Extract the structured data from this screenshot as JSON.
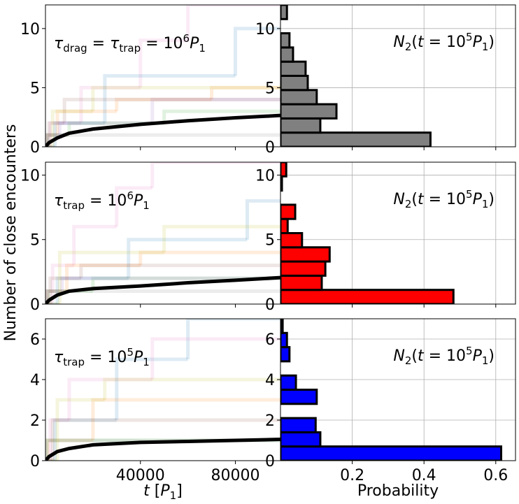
{
  "ylabel": "Number of close encounters",
  "chart_data": [
    {
      "type": "line",
      "xlim": [
        0,
        99000
      ],
      "ylim": [
        0,
        12
      ],
      "xticks": [
        40000,
        80000
      ],
      "yticks": [
        0,
        5,
        10
      ],
      "xticklabels": false,
      "grid": false,
      "alpha": 0.15,
      "annotation": [
        {
          "text": "τ",
          "style": "italic"
        },
        {
          "text": "drag",
          "style": "sub"
        },
        {
          "text": " = ",
          "style": "normal"
        },
        {
          "text": "τ",
          "style": "italic"
        },
        {
          "text": "trap",
          "style": "sub"
        },
        {
          "text": " = 10",
          "style": "normal"
        },
        {
          "text": "6",
          "style": "sup"
        },
        {
          "text": "P",
          "style": "italic"
        },
        {
          "text": "1",
          "style": "sub"
        }
      ],
      "series": [
        {
          "color": "#e377c2",
          "drawstyle": "steps",
          "width": 5,
          "x": [
            0,
            2000,
            15000,
            40000,
            60000
          ],
          "values": [
            0,
            2,
            5,
            9,
            12
          ]
        },
        {
          "color": "#ff7f0e",
          "drawstyle": "steps",
          "width": 5,
          "x": [
            0,
            500,
            5000,
            30000,
            70000
          ],
          "values": [
            0,
            1,
            3,
            4,
            5
          ]
        },
        {
          "color": "#1f77b4",
          "drawstyle": "steps",
          "width": 5,
          "x": [
            0,
            4000,
            25000,
            80000
          ],
          "values": [
            0,
            2,
            6,
            10
          ]
        },
        {
          "color": "#2ca02c",
          "drawstyle": "steps",
          "width": 5,
          "x": [
            0,
            1000,
            10000,
            50000
          ],
          "values": [
            0,
            1,
            2,
            3
          ]
        },
        {
          "color": "#7f7f7f",
          "drawstyle": "steps",
          "width": 5,
          "x": [
            0,
            300
          ],
          "values": [
            0,
            1
          ]
        },
        {
          "color": "#8c564b",
          "drawstyle": "steps",
          "width": 5,
          "x": [
            0,
            1500,
            8000
          ],
          "values": [
            0,
            2,
            4
          ]
        },
        {
          "color": "#bcbd22",
          "drawstyle": "steps",
          "width": 5,
          "x": [
            0,
            3000,
            20000
          ],
          "values": [
            0,
            3,
            5
          ]
        },
        {
          "color": "#9467bd",
          "drawstyle": "steps",
          "width": 5,
          "x": [
            0,
            700,
            6000,
            45000
          ],
          "values": [
            0,
            1,
            2,
            4
          ]
        },
        {
          "color": "#000000",
          "drawstyle": "default",
          "width": 5,
          "x": [
            0,
            1500,
            5000,
            10000,
            20000,
            40000,
            60000,
            80000,
            99000
          ],
          "values": [
            0,
            0.35,
            0.75,
            1.15,
            1.5,
            1.9,
            2.2,
            2.45,
            2.65
          ]
        }
      ]
    },
    {
      "type": "histogram",
      "xlim": [
        0,
        0.655
      ],
      "ylim": [
        0,
        12
      ],
      "xticks": [
        0.2,
        0.4,
        0.6
      ],
      "yticks": [
        0,
        5,
        10
      ],
      "xticklabels": false,
      "grid": true,
      "color": "#808080",
      "annotation": [
        {
          "text": "N",
          "style": "italic"
        },
        {
          "text": "2",
          "style": "sub"
        },
        {
          "text": "(",
          "style": "normal"
        },
        {
          "text": "t",
          "style": "italic"
        },
        {
          "text": " = 10",
          "style": "normal"
        },
        {
          "text": "5",
          "style": "sup"
        },
        {
          "text": "P",
          "style": "italic"
        },
        {
          "text": "1",
          "style": "sub"
        },
        {
          "text": ")",
          "style": "normal"
        }
      ],
      "bins": [
        0,
        1.2,
        2.4,
        3.6,
        4.8,
        6,
        7.2,
        8.4,
        9.6,
        10.8,
        12
      ],
      "values": [
        0.418,
        0.111,
        0.156,
        0.101,
        0.076,
        0.07,
        0.035,
        0.025,
        0,
        0.018
      ]
    },
    {
      "type": "line",
      "xlim": [
        0,
        99000
      ],
      "ylim": [
        0,
        11
      ],
      "xticks": [
        40000,
        80000
      ],
      "yticks": [
        0,
        5,
        10
      ],
      "xticklabels": false,
      "grid": false,
      "alpha": 0.15,
      "annotation": [
        {
          "text": "τ",
          "style": "italic"
        },
        {
          "text": "trap",
          "style": "sub"
        },
        {
          "text": " = 10",
          "style": "normal"
        },
        {
          "text": "6",
          "style": "sup"
        },
        {
          "text": "P",
          "style": "italic"
        },
        {
          "text": "1",
          "style": "sub"
        }
      ],
      "series": [
        {
          "color": "#e377c2",
          "drawstyle": "steps",
          "width": 5,
          "x": [
            0,
            3000,
            12000,
            30000,
            45000
          ],
          "values": [
            0,
            3,
            6,
            9,
            11
          ]
        },
        {
          "color": "#ff7f0e",
          "drawstyle": "steps",
          "width": 5,
          "x": [
            0,
            800,
            9000,
            40000
          ],
          "values": [
            0,
            1,
            3,
            4
          ]
        },
        {
          "color": "#1f77b4",
          "drawstyle": "steps",
          "width": 5,
          "x": [
            0,
            5000,
            35000,
            85000
          ],
          "values": [
            0,
            2,
            5,
            8
          ]
        },
        {
          "color": "#2ca02c",
          "drawstyle": "steps",
          "width": 5,
          "x": [
            0,
            1200,
            20000
          ],
          "values": [
            0,
            1,
            2
          ]
        },
        {
          "color": "#7f7f7f",
          "drawstyle": "steps",
          "width": 5,
          "x": [
            0,
            400
          ],
          "values": [
            0,
            1
          ]
        },
        {
          "color": "#8c564b",
          "drawstyle": "steps",
          "width": 5,
          "x": [
            0,
            2000,
            15000
          ],
          "values": [
            0,
            2,
            3
          ]
        },
        {
          "color": "#bcbd22",
          "drawstyle": "steps",
          "width": 5,
          "x": [
            0,
            6000,
            50000
          ],
          "values": [
            0,
            4,
            6
          ]
        },
        {
          "color": "#9467bd",
          "drawstyle": "steps",
          "width": 5,
          "x": [
            0,
            900,
            7000
          ],
          "values": [
            0,
            1,
            2
          ]
        },
        {
          "color": "#000000",
          "drawstyle": "default",
          "width": 5,
          "x": [
            0,
            1500,
            5000,
            10000,
            20000,
            40000,
            60000,
            80000,
            99000
          ],
          "values": [
            0,
            0.3,
            0.7,
            1.0,
            1.2,
            1.4,
            1.65,
            1.85,
            2.05
          ]
        }
      ]
    },
    {
      "type": "histogram",
      "xlim": [
        0,
        0.655
      ],
      "ylim": [
        0,
        11
      ],
      "xticks": [
        0.2,
        0.4,
        0.6
      ],
      "yticks": [
        0,
        5,
        10
      ],
      "xticklabels": false,
      "grid": true,
      "color": "#ff0000",
      "annotation": [
        {
          "text": "N",
          "style": "italic"
        },
        {
          "text": "2",
          "style": "sub"
        },
        {
          "text": "(",
          "style": "normal"
        },
        {
          "text": "t",
          "style": "italic"
        },
        {
          "text": " = 10",
          "style": "normal"
        },
        {
          "text": "5",
          "style": "sup"
        },
        {
          "text": "P",
          "style": "italic"
        },
        {
          "text": "1",
          "style": "sub"
        },
        {
          "text": ")",
          "style": "normal"
        }
      ],
      "bins": [
        0,
        1.1,
        2.2,
        3.3,
        4.4,
        5.5,
        6.6,
        7.7,
        8.8,
        9.9,
        11
      ],
      "values": [
        0.482,
        0.115,
        0.125,
        0.137,
        0.06,
        0.02,
        0.041,
        0,
        0.004,
        0.016
      ]
    },
    {
      "type": "line",
      "xlim": [
        0,
        99000
      ],
      "ylim": [
        0,
        7
      ],
      "xticks": [
        40000,
        80000
      ],
      "yticks": [
        0,
        2,
        4,
        6
      ],
      "xticklabels": true,
      "grid": false,
      "alpha": 0.15,
      "xlabel": [
        {
          "text": "t",
          "style": "italic"
        },
        {
          "text": " [",
          "style": "normal"
        },
        {
          "text": "P",
          "style": "italic"
        },
        {
          "text": "1",
          "style": "sub"
        },
        {
          "text": "]",
          "style": "normal"
        }
      ],
      "annotation": [
        {
          "text": "τ",
          "style": "italic"
        },
        {
          "text": "trap",
          "style": "sub"
        },
        {
          "text": " = 10",
          "style": "normal"
        },
        {
          "text": "5",
          "style": "sup"
        },
        {
          "text": "P",
          "style": "italic"
        },
        {
          "text": "1",
          "style": "sub"
        }
      ],
      "series": [
        {
          "color": "#1f77b4",
          "drawstyle": "steps",
          "width": 5,
          "x": [
            0,
            4000,
            30000,
            60000
          ],
          "values": [
            0,
            2,
            5,
            7
          ]
        },
        {
          "color": "#ff7f0e",
          "drawstyle": "steps",
          "width": 5,
          "x": [
            0,
            1000,
            20000
          ],
          "values": [
            0,
            1,
            3
          ]
        },
        {
          "color": "#e377c2",
          "drawstyle": "steps",
          "width": 5,
          "x": [
            0,
            2000,
            10000,
            45000
          ],
          "values": [
            0,
            2,
            4,
            6
          ]
        },
        {
          "color": "#2ca02c",
          "drawstyle": "steps",
          "width": 5,
          "x": [
            0,
            600
          ],
          "values": [
            0,
            1
          ]
        },
        {
          "color": "#7f7f7f",
          "drawstyle": "steps",
          "width": 5,
          "x": [
            0,
            300
          ],
          "values": [
            0,
            1
          ]
        },
        {
          "color": "#8c564b",
          "drawstyle": "steps",
          "width": 5,
          "x": [
            0,
            3000
          ],
          "values": [
            0,
            2
          ]
        },
        {
          "color": "#bcbd22",
          "drawstyle": "steps",
          "width": 5,
          "x": [
            0,
            5000,
            25000
          ],
          "values": [
            0,
            3,
            4
          ]
        },
        {
          "color": "#000000",
          "drawstyle": "default",
          "width": 5,
          "x": [
            0,
            1500,
            5000,
            10000,
            20000,
            40000,
            60000,
            80000,
            99000
          ],
          "values": [
            0,
            0.2,
            0.45,
            0.6,
            0.78,
            0.9,
            0.95,
            1.0,
            1.05
          ]
        }
      ]
    },
    {
      "type": "histogram",
      "xlim": [
        0,
        0.655
      ],
      "ylim": [
        0,
        7
      ],
      "xticks": [
        0.2,
        0.4,
        0.6
      ],
      "yticks": [
        0,
        2,
        4,
        6
      ],
      "xticklabels": true,
      "grid": true,
      "color": "#0000ff",
      "xlabel": [
        {
          "text": "Probability",
          "style": "normal"
        }
      ],
      "annotation": [
        {
          "text": "N",
          "style": "italic"
        },
        {
          "text": "2",
          "style": "sub"
        },
        {
          "text": "(",
          "style": "normal"
        },
        {
          "text": "t",
          "style": "italic"
        },
        {
          "text": " = 10",
          "style": "normal"
        },
        {
          "text": "5",
          "style": "sup"
        },
        {
          "text": "P",
          "style": "italic"
        },
        {
          "text": "1",
          "style": "sub"
        },
        {
          "text": ")",
          "style": "normal"
        }
      ],
      "bins": [
        0,
        0.7,
        1.4,
        2.1,
        2.8,
        3.5,
        4.2,
        4.9,
        5.6,
        6.3,
        7
      ],
      "values": [
        0.615,
        0.111,
        0.098,
        0,
        0.101,
        0.043,
        0,
        0.025,
        0.018,
        0.006
      ]
    }
  ]
}
